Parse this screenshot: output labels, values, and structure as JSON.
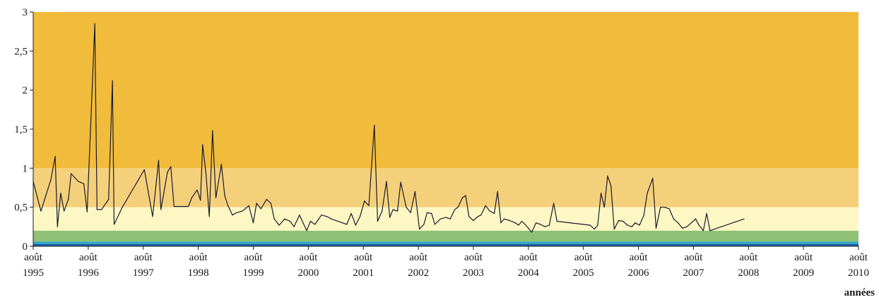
{
  "chart_data": {
    "type": "line",
    "xlabel": "années",
    "ylabel": "",
    "ylim": [
      0,
      3
    ],
    "y_ticks": [
      "0",
      "0,5",
      "1",
      "1,5",
      "2",
      "2,5",
      "3"
    ],
    "x_ticks": [
      {
        "line1": "août",
        "line2": "1995"
      },
      {
        "line1": "août",
        "line2": "1996"
      },
      {
        "line1": "août",
        "line2": "1997"
      },
      {
        "line1": "août",
        "line2": "1998"
      },
      {
        "line1": "août",
        "line2": "1999"
      },
      {
        "line1": "août",
        "line2": "2000"
      },
      {
        "line1": "août",
        "line2": "2001"
      },
      {
        "line1": "août",
        "line2": "2002"
      },
      {
        "line1": "août",
        "line2": "2003"
      },
      {
        "line1": "août",
        "line2": "2004"
      },
      {
        "line1": "août",
        "line2": "2005"
      },
      {
        "line1": "août",
        "line2": "2006"
      },
      {
        "line1": "août",
        "line2": "2007"
      },
      {
        "line1": "août",
        "line2": "2008"
      },
      {
        "line1": "août",
        "line2": "2009"
      },
      {
        "line1": "août",
        "line2": "2010"
      }
    ],
    "bands": [
      {
        "from": 0,
        "to": 0.03,
        "color": "#1f5fa8"
      },
      {
        "from": 0.03,
        "to": 0.06,
        "color": "#2aa8c8"
      },
      {
        "from": 0.06,
        "to": 0.2,
        "color": "#8fc276"
      },
      {
        "from": 0.2,
        "to": 0.5,
        "color": "#fdf7c4"
      },
      {
        "from": 0.5,
        "to": 1.0,
        "color": "#f4d07a"
      },
      {
        "from": 1.0,
        "to": 3.0,
        "color": "#f1bc3b"
      }
    ],
    "series": [
      {
        "color": "#1a1a2e",
        "points": [
          [
            1995.58,
            0.83
          ],
          [
            1995.72,
            0.45
          ],
          [
            1995.9,
            0.85
          ],
          [
            1995.98,
            1.15
          ],
          [
            1996.02,
            0.25
          ],
          [
            1996.08,
            0.68
          ],
          [
            1996.14,
            0.45
          ],
          [
            1996.22,
            0.6
          ],
          [
            1996.27,
            0.93
          ],
          [
            1996.4,
            0.83
          ],
          [
            1996.5,
            0.8
          ],
          [
            1996.56,
            0.44
          ],
          [
            1996.7,
            2.85
          ],
          [
            1996.74,
            0.47
          ],
          [
            1996.82,
            0.47
          ],
          [
            1996.95,
            0.6
          ],
          [
            1997.02,
            2.12
          ],
          [
            1997.05,
            0.28
          ],
          [
            1997.2,
            0.5
          ],
          [
            1997.6,
            0.98
          ],
          [
            1997.75,
            0.38
          ],
          [
            1997.86,
            1.1
          ],
          [
            1997.9,
            0.47
          ],
          [
            1998.02,
            0.95
          ],
          [
            1998.08,
            1.02
          ],
          [
            1998.14,
            0.51
          ],
          [
            1998.4,
            0.51
          ],
          [
            1998.46,
            0.62
          ],
          [
            1998.56,
            0.72
          ],
          [
            1998.62,
            0.59
          ],
          [
            1998.66,
            1.3
          ],
          [
            1998.72,
            0.93
          ],
          [
            1998.78,
            0.38
          ],
          [
            1998.84,
            1.48
          ],
          [
            1998.9,
            0.62
          ],
          [
            1999.0,
            1.05
          ],
          [
            1999.06,
            0.65
          ],
          [
            1999.12,
            0.52
          ],
          [
            1999.2,
            0.4
          ],
          [
            1999.28,
            0.43
          ],
          [
            1999.38,
            0.45
          ],
          [
            1999.5,
            0.52
          ],
          [
            1999.58,
            0.3
          ],
          [
            1999.64,
            0.55
          ],
          [
            1999.72,
            0.48
          ],
          [
            1999.82,
            0.6
          ],
          [
            1999.9,
            0.55
          ],
          [
            1999.96,
            0.35
          ],
          [
            2000.05,
            0.27
          ],
          [
            2000.15,
            0.35
          ],
          [
            2000.25,
            0.32
          ],
          [
            2000.32,
            0.25
          ],
          [
            2000.42,
            0.4
          ],
          [
            2000.55,
            0.2
          ],
          [
            2000.62,
            0.32
          ],
          [
            2000.7,
            0.28
          ],
          [
            2000.82,
            0.4
          ],
          [
            2000.92,
            0.38
          ],
          [
            2001.0,
            0.35
          ],
          [
            2001.2,
            0.3
          ],
          [
            2001.28,
            0.28
          ],
          [
            2001.36,
            0.42
          ],
          [
            2001.44,
            0.27
          ],
          [
            2001.52,
            0.38
          ],
          [
            2001.6,
            0.58
          ],
          [
            2001.68,
            0.52
          ],
          [
            2001.78,
            1.55
          ],
          [
            2001.84,
            0.32
          ],
          [
            2001.92,
            0.45
          ],
          [
            2002.0,
            0.83
          ],
          [
            2002.06,
            0.37
          ],
          [
            2002.12,
            0.47
          ],
          [
            2002.2,
            0.45
          ],
          [
            2002.26,
            0.82
          ],
          [
            2002.36,
            0.5
          ],
          [
            2002.44,
            0.43
          ],
          [
            2002.52,
            0.7
          ],
          [
            2002.6,
            0.22
          ],
          [
            2002.68,
            0.28
          ],
          [
            2002.74,
            0.43
          ],
          [
            2002.82,
            0.42
          ],
          [
            2002.88,
            0.28
          ],
          [
            2002.98,
            0.35
          ],
          [
            2003.08,
            0.37
          ],
          [
            2003.16,
            0.35
          ],
          [
            2003.24,
            0.47
          ],
          [
            2003.3,
            0.5
          ],
          [
            2003.38,
            0.62
          ],
          [
            2003.44,
            0.65
          ],
          [
            2003.5,
            0.38
          ],
          [
            2003.58,
            0.33
          ],
          [
            2003.66,
            0.38
          ],
          [
            2003.72,
            0.4
          ],
          [
            2003.8,
            0.52
          ],
          [
            2003.88,
            0.45
          ],
          [
            2003.96,
            0.42
          ],
          [
            2004.02,
            0.7
          ],
          [
            2004.08,
            0.3
          ],
          [
            2004.14,
            0.35
          ],
          [
            2004.24,
            0.33
          ],
          [
            2004.34,
            0.3
          ],
          [
            2004.4,
            0.27
          ],
          [
            2004.46,
            0.32
          ],
          [
            2004.52,
            0.28
          ],
          [
            2004.58,
            0.23
          ],
          [
            2004.64,
            0.18
          ],
          [
            2004.72,
            0.3
          ],
          [
            2004.8,
            0.28
          ],
          [
            2004.88,
            0.25
          ],
          [
            2004.96,
            0.27
          ],
          [
            2005.04,
            0.55
          ],
          [
            2005.1,
            0.32
          ],
          [
            2005.7,
            0.27
          ],
          [
            2005.78,
            0.22
          ],
          [
            2005.84,
            0.27
          ],
          [
            2005.9,
            0.68
          ],
          [
            2005.96,
            0.5
          ],
          [
            2006.02,
            0.9
          ],
          [
            2006.08,
            0.78
          ],
          [
            2006.14,
            0.22
          ],
          [
            2006.22,
            0.33
          ],
          [
            2006.3,
            0.32
          ],
          [
            2006.38,
            0.27
          ],
          [
            2006.46,
            0.25
          ],
          [
            2006.52,
            0.3
          ],
          [
            2006.6,
            0.27
          ],
          [
            2006.68,
            0.4
          ],
          [
            2006.74,
            0.68
          ],
          [
            2006.84,
            0.87
          ],
          [
            2006.9,
            0.23
          ],
          [
            2006.98,
            0.5
          ],
          [
            2007.06,
            0.5
          ],
          [
            2007.14,
            0.48
          ],
          [
            2007.22,
            0.35
          ],
          [
            2007.3,
            0.3
          ],
          [
            2007.38,
            0.23
          ],
          [
            2007.46,
            0.25
          ],
          [
            2007.54,
            0.3
          ],
          [
            2007.62,
            0.35
          ],
          [
            2007.68,
            0.27
          ],
          [
            2007.76,
            0.2
          ],
          [
            2007.82,
            0.42
          ],
          [
            2007.88,
            0.2
          ],
          [
            2007.96,
            0.22
          ],
          [
            2008.5,
            0.35
          ]
        ]
      }
    ]
  }
}
